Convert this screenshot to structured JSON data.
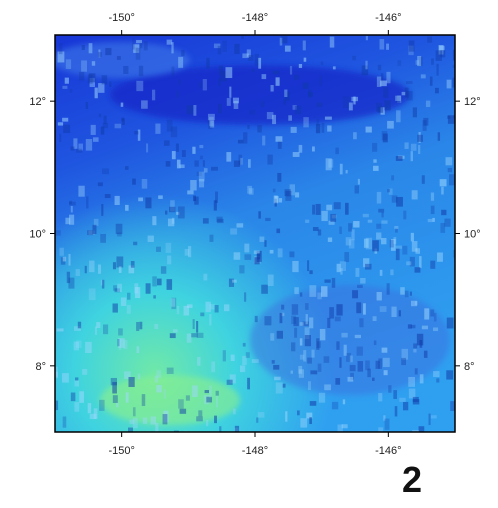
{
  "map": {
    "xlim": [
      -151,
      -145
    ],
    "ylim": [
      7,
      13
    ],
    "xticks": [
      {
        "value": -150,
        "label": "-150°"
      },
      {
        "value": -148,
        "label": "-148°"
      },
      {
        "value": -146,
        "label": "-146°"
      }
    ],
    "yticks": [
      {
        "value": 12,
        "label": "12°"
      },
      {
        "value": 10,
        "label": "10°"
      },
      {
        "value": 8,
        "label": "8°"
      }
    ]
  },
  "panel_label": "2"
}
